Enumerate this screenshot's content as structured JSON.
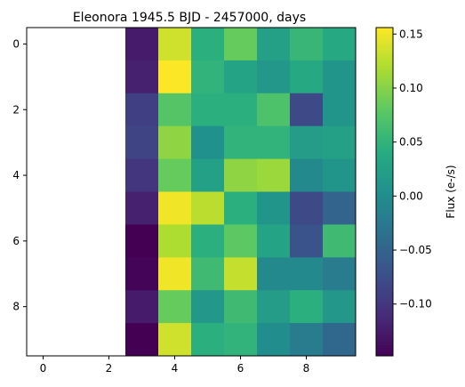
{
  "chart_data": {
    "type": "heatmap",
    "title": "Eleonora 1945.5 BJD - 2457000, days",
    "colorbar_label": "Flux (e-/s)",
    "colormap": "viridis",
    "vmin": -0.148,
    "vmax": 0.156,
    "x_ticks": [
      "0",
      "2",
      "4",
      "6",
      "8"
    ],
    "y_ticks": [
      "0",
      "2",
      "4",
      "6",
      "8"
    ],
    "colorbar_ticks": [
      "0.15",
      "0.10",
      "0.05",
      "0.00",
      "−0.05",
      "−0.10"
    ],
    "colorbar_tick_values": [
      0.15,
      0.1,
      0.05,
      0.0,
      -0.05,
      -0.1
    ],
    "rows": 10,
    "cols": 10,
    "empty_cols": [
      0,
      1,
      2
    ],
    "values": [
      [
        null,
        null,
        null,
        -0.125,
        0.135,
        0.045,
        0.085,
        0.025,
        0.055,
        0.035
      ],
      [
        null,
        null,
        null,
        -0.12,
        0.155,
        0.05,
        0.03,
        0.015,
        0.035,
        0.01
      ],
      [
        null,
        null,
        null,
        -0.09,
        0.075,
        0.045,
        0.045,
        0.07,
        -0.08,
        0.01
      ],
      [
        null,
        null,
        null,
        -0.085,
        0.105,
        0.005,
        0.05,
        0.05,
        0.02,
        0.025
      ],
      [
        null,
        null,
        null,
        -0.1,
        0.085,
        0.025,
        0.105,
        0.11,
        -0.005,
        0.01
      ],
      [
        null,
        null,
        null,
        -0.12,
        0.15,
        0.125,
        0.045,
        0.01,
        -0.08,
        -0.05
      ],
      [
        null,
        null,
        null,
        -0.148,
        0.12,
        0.045,
        0.08,
        0.03,
        -0.07,
        0.06
      ],
      [
        null,
        null,
        null,
        -0.145,
        0.15,
        0.06,
        0.13,
        -0.005,
        -0.005,
        -0.02
      ],
      [
        null,
        null,
        null,
        -0.125,
        0.085,
        0.015,
        0.06,
        0.02,
        0.045,
        0.015
      ],
      [
        null,
        null,
        null,
        -0.148,
        0.135,
        0.045,
        0.05,
        0.0,
        -0.02,
        -0.045
      ]
    ]
  }
}
